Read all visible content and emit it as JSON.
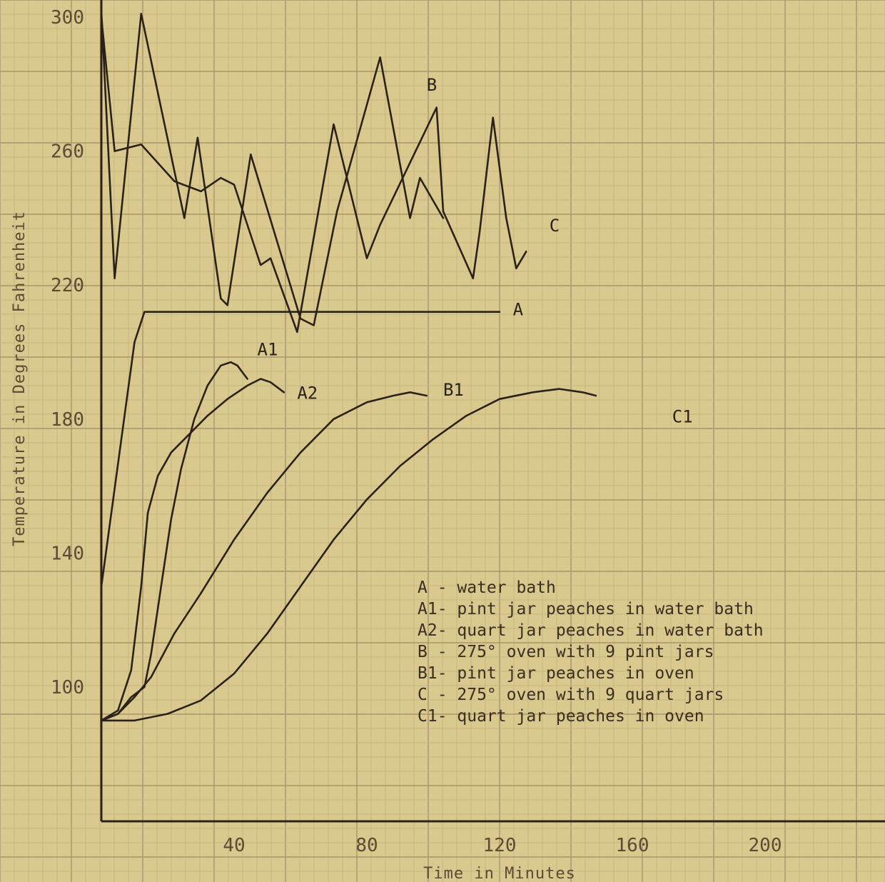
{
  "chart_data": {
    "type": "line",
    "title": "",
    "xlabel": "Time in Minutes",
    "ylabel": "Temperature in Degrees Fahrenheit",
    "xlim": [
      0,
      240
    ],
    "ylim": [
      70,
      305
    ],
    "x_ticks": [
      40,
      80,
      120,
      160,
      200
    ],
    "y_ticks": [
      100,
      140,
      180,
      220,
      260,
      300
    ],
    "grid": true,
    "series": [
      {
        "name": "A",
        "curve_label": "A",
        "points": [
          [
            0,
            130
          ],
          [
            10,
            203
          ],
          [
            13,
            212
          ],
          [
            120,
            212
          ]
        ],
        "label_at": [
          124,
          211
        ]
      },
      {
        "name": "A1",
        "curve_label": "A1",
        "points": [
          [
            0,
            90
          ],
          [
            5,
            92
          ],
          [
            9,
            97
          ],
          [
            13,
            100
          ],
          [
            15,
            110
          ],
          [
            18,
            130
          ],
          [
            21,
            150
          ],
          [
            24,
            165
          ],
          [
            28,
            180
          ],
          [
            32,
            190
          ],
          [
            36,
            196
          ],
          [
            39,
            197
          ],
          [
            41,
            196
          ],
          [
            44,
            192
          ]
        ],
        "label_at": [
          47,
          199
        ]
      },
      {
        "name": "A2",
        "curve_label": "A2",
        "points": [
          [
            0,
            90
          ],
          [
            5,
            93
          ],
          [
            9,
            105
          ],
          [
            12,
            130
          ],
          [
            14,
            152
          ],
          [
            17,
            163
          ],
          [
            21,
            170
          ],
          [
            26,
            175
          ],
          [
            32,
            181
          ],
          [
            38,
            186
          ],
          [
            44,
            190
          ],
          [
            48,
            192
          ],
          [
            51,
            191
          ],
          [
            55,
            188
          ]
        ],
        "label_at": [
          59,
          186
        ]
      },
      {
        "name": "B",
        "curve_label": "B",
        "points": [
          [
            0,
            302
          ],
          [
            4,
            222
          ],
          [
            12,
            301
          ],
          [
            25,
            240
          ],
          [
            29,
            264
          ],
          [
            36,
            216
          ],
          [
            38,
            214
          ],
          [
            45,
            259
          ],
          [
            60,
            210
          ],
          [
            64,
            208
          ],
          [
            71,
            242
          ],
          [
            84,
            288
          ],
          [
            93,
            240
          ],
          [
            96,
            252
          ],
          [
            103,
            240
          ]
        ],
        "label_at": [
          98,
          278
        ]
      },
      {
        "name": "B1",
        "curve_label": "B1",
        "points": [
          [
            0,
            90
          ],
          [
            5,
            92
          ],
          [
            10,
            97
          ],
          [
            15,
            103
          ],
          [
            22,
            116
          ],
          [
            30,
            128
          ],
          [
            40,
            144
          ],
          [
            50,
            158
          ],
          [
            60,
            170
          ],
          [
            70,
            180
          ],
          [
            80,
            185
          ],
          [
            88,
            187
          ],
          [
            93,
            188
          ],
          [
            98,
            187
          ]
        ],
        "label_at": [
          103,
          187
        ]
      },
      {
        "name": "C",
        "curve_label": "C",
        "points": [
          [
            0,
            300
          ],
          [
            4,
            260
          ],
          [
            12,
            262
          ],
          [
            22,
            251
          ],
          [
            30,
            248
          ],
          [
            36,
            252
          ],
          [
            40,
            250
          ],
          [
            48,
            226
          ],
          [
            51,
            228
          ],
          [
            59,
            206
          ],
          [
            70,
            268
          ],
          [
            80,
            228
          ],
          [
            84,
            238
          ],
          [
            101,
            273
          ],
          [
            103,
            242
          ],
          [
            112,
            222
          ],
          [
            114,
            236
          ],
          [
            118,
            270
          ],
          [
            122,
            240
          ],
          [
            125,
            225
          ],
          [
            128,
            230
          ]
        ],
        "label_at": [
          135,
          236
        ]
      },
      {
        "name": "C1",
        "curve_label": "C1",
        "points": [
          [
            0,
            90
          ],
          [
            10,
            90
          ],
          [
            20,
            92
          ],
          [
            30,
            96
          ],
          [
            40,
            104
          ],
          [
            50,
            116
          ],
          [
            60,
            130
          ],
          [
            70,
            144
          ],
          [
            80,
            156
          ],
          [
            90,
            166
          ],
          [
            100,
            174
          ],
          [
            110,
            181
          ],
          [
            120,
            186
          ],
          [
            130,
            188
          ],
          [
            138,
            189
          ],
          [
            145,
            188
          ],
          [
            149,
            187
          ]
        ],
        "label_at": [
          172,
          179
        ]
      }
    ],
    "legend": {
      "placement": "center-right",
      "entries": [
        "A - water bath",
        "A1- pint jar peaches in water bath",
        "A2- quart jar peaches in water bath",
        "B - 275° oven with 9 pint jars",
        "B1- pint jar peaches in oven",
        "C - 275° oven with 9 quart jars",
        "C1- quart jar peaches in oven"
      ]
    }
  },
  "colors": {
    "paper": "#d9c98f",
    "grid_minor": "#bfae78",
    "grid_major": "#a8956a",
    "ink": "#2a2218",
    "print": "#5b4a34"
  }
}
